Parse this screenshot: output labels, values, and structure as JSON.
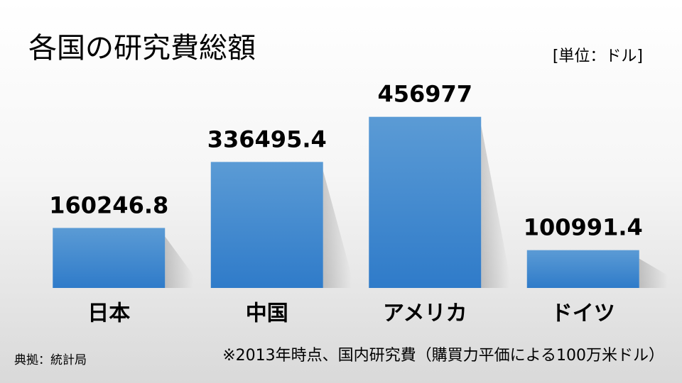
{
  "chart_data": {
    "type": "bar",
    "title": "各国の研究費総額",
    "unit": "[単位：ドル]",
    "categories": [
      "日本",
      "中国",
      "アメリカ",
      "ドイツ"
    ],
    "values": [
      160246.8,
      336495.4,
      456977,
      100991.4
    ],
    "color": "#3b86d0",
    "ylim": [
      0,
      500000
    ],
    "source": "典拠：統計局",
    "note": "※2013年時点、国内研究費（購買力平価による100万米ドル）"
  }
}
